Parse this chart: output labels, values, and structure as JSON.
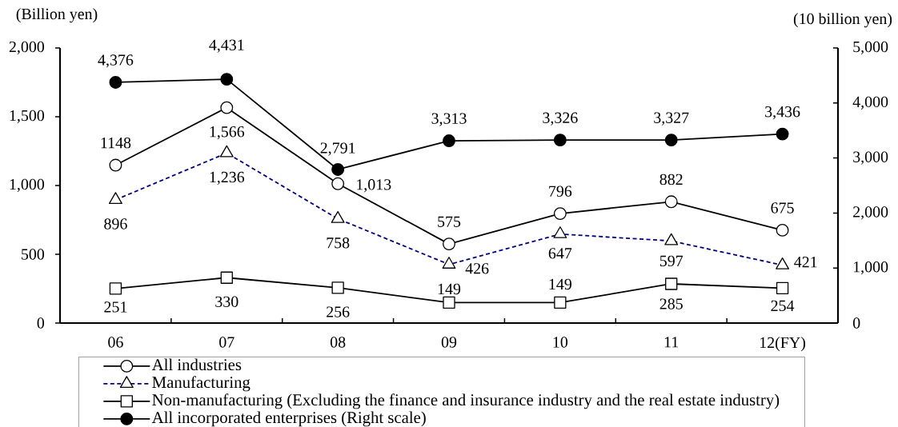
{
  "chart_data": {
    "type": "line",
    "ylabel": "(Billion yen)",
    "y2label": "(10 billion yen)",
    "categories": [
      "06",
      "07",
      "08",
      "09",
      "10",
      "11",
      "12(FY)"
    ],
    "ylim": [
      0,
      2000
    ],
    "yticks": [
      0,
      500,
      {
        "value": 1000,
        "label": "1,000"
      },
      {
        "value": 1500,
        "label": "1,500"
      },
      {
        "value": 2000,
        "label": "2,000"
      }
    ],
    "y2lim": [
      0,
      5000
    ],
    "y2ticks": [
      0,
      {
        "value": 1000,
        "label": "1,000"
      },
      {
        "value": 2000,
        "label": "2,000"
      },
      {
        "value": 3000,
        "label": "3,000"
      },
      {
        "value": 4000,
        "label": "4,000"
      },
      {
        "value": 5000,
        "label": "5,000"
      }
    ],
    "legend": "bottom",
    "series": [
      {
        "name": "All industries",
        "color": "#000000",
        "marker": "circle",
        "line_style": "solid",
        "values": [
          1148,
          1566,
          1013,
          575,
          796,
          882,
          675
        ],
        "value_labels": [
          "1148",
          "1,566",
          "1,013",
          "575",
          "796",
          "882",
          "675"
        ]
      },
      {
        "name": "Manufacturing",
        "color": "#000080",
        "marker": "triangle",
        "line_style": "dashed",
        "values": [
          896,
          1236,
          758,
          426,
          647,
          597,
          421
        ],
        "value_labels": [
          "896",
          "1,236",
          "758",
          "426",
          "647",
          "597",
          "421"
        ]
      },
      {
        "name": "Non-manufacturing (Excluding the finance and insurance industry and the real estate industry)",
        "color": "#000000",
        "marker": "square",
        "line_style": "solid",
        "values": [
          251,
          330,
          256,
          149,
          149,
          285,
          254
        ],
        "value_labels": [
          "251",
          "330",
          "256",
          "149",
          "149",
          "285",
          "254"
        ]
      },
      {
        "name": "All incorporated enterprises (Right scale)",
        "color": "#000000",
        "marker": "circle",
        "line_style": "solid",
        "axis": "y2",
        "values": [
          4376,
          4431,
          2791,
          3313,
          3326,
          3327,
          3436
        ],
        "value_labels": [
          "4,376",
          "4,431",
          "2,791",
          "3,313",
          "3,326",
          "3,327",
          "3,436"
        ]
      }
    ]
  }
}
